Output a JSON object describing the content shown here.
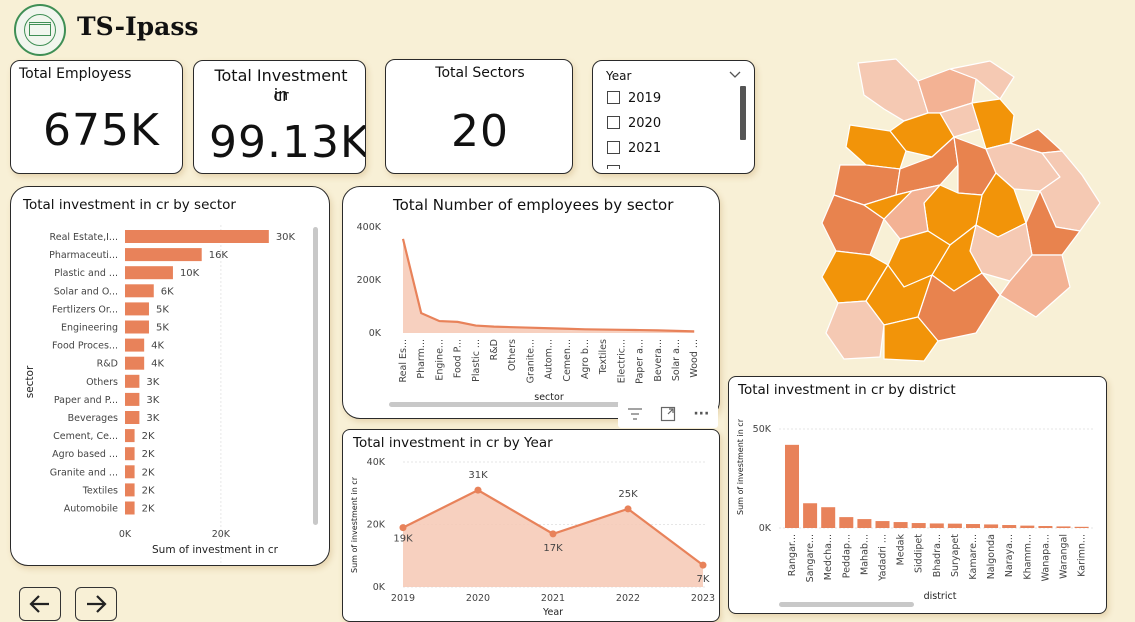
{
  "header": {
    "title": "TS-Ipass"
  },
  "kpis": {
    "employees": {
      "label": "Total Employess",
      "value": "675K"
    },
    "investment": {
      "label_line1": "Total Investment in",
      "label_line2": "cr",
      "value": "99.13K"
    },
    "sectors": {
      "label": "Total Sectors",
      "value": "20"
    }
  },
  "year_slicer": {
    "title": "Year",
    "options": [
      "2019",
      "2020",
      "2021"
    ]
  },
  "map": {
    "colors": {
      "strong": "#f29409",
      "medium": "#e8834e",
      "light": "#f3b294",
      "pale": "#f5c9b3",
      "border": "#ffffff"
    }
  },
  "sector_chart": {
    "chart_data": {
      "type": "bar",
      "title": "Total investment in cr by sector",
      "xlabel": "Sum of investment in cr",
      "ylabel": "sector",
      "categories": [
        "Real Estate,I...",
        "Pharmaceuti...",
        "Plastic and ...",
        "Solar and O...",
        "Fertlizers Or...",
        "Engineering",
        "Food Proces...",
        "R&D",
        "Others",
        "Paper and P...",
        "Beverages",
        "Cement, Ce...",
        "Agro based ...",
        "Granite and ...",
        "Textiles",
        "Automobile"
      ],
      "values": [
        30000,
        16000,
        10000,
        6000,
        5000,
        5000,
        4000,
        4000,
        3000,
        3000,
        3000,
        2000,
        2000,
        2000,
        2000,
        2000
      ],
      "data_labels": [
        "30K",
        "16K",
        "10K",
        "6K",
        "5K",
        "5K",
        "4K",
        "4K",
        "3K",
        "3K",
        "3K",
        "2K",
        "2K",
        "2K",
        "2K",
        "2K"
      ],
      "xticks": [
        "0K",
        "20K"
      ],
      "xlim": [
        0,
        34000
      ],
      "color": "#e8825a"
    }
  },
  "employees_chart": {
    "chart_data": {
      "type": "area",
      "title": "Total Number of employees by sector",
      "xlabel": "sector",
      "categories": [
        "Real Es...",
        "Pharm...",
        "Engine...",
        "Food P...",
        "Plastic ...",
        "R&D",
        "Others",
        "Granite...",
        "Autom...",
        "Cemen...",
        "Agro b...",
        "Textiles",
        "Electric...",
        "Paper a...",
        "Bevera...",
        "Solar a...",
        "Wood ..."
      ],
      "values": [
        355000,
        75000,
        45000,
        42000,
        28000,
        24000,
        22000,
        20000,
        18000,
        16000,
        14000,
        13000,
        12000,
        11000,
        10000,
        8000,
        6000
      ],
      "yticks": [
        "0K",
        "200K",
        "400K"
      ],
      "ylim": [
        0,
        400000
      ],
      "color": "#e8825a",
      "fill": "#f6c8b4"
    }
  },
  "year_chart": {
    "chart_data": {
      "type": "area",
      "title": "Total investment in cr by Year",
      "xlabel": "Year",
      "ylabel": "Sum of investment in cr",
      "categories": [
        "2019",
        "2020",
        "2021",
        "2022",
        "2023"
      ],
      "values": [
        19000,
        31000,
        17000,
        25000,
        7000
      ],
      "data_labels": [
        "19K",
        "31K",
        "17K",
        "25K",
        "7K"
      ],
      "yticks": [
        "0K",
        "20K",
        "40K"
      ],
      "ylim": [
        0,
        40000
      ],
      "color": "#e8825a",
      "fill": "#f6c8b4"
    }
  },
  "district_chart": {
    "chart_data": {
      "type": "bar",
      "title": "Total investment in cr by district",
      "xlabel": "district",
      "ylabel": "Sum of investment in cr",
      "categories": [
        "Rangar...",
        "Sangare...",
        "Medcha...",
        "Peddap...",
        "Mahab...",
        "Yadadri ...",
        "Medak",
        "Siddipet",
        "Bhadra...",
        "Suryapet",
        "Kamare...",
        "Nalgonda",
        "Naraya...",
        "Khamm...",
        "Wanapa...",
        "Warangal",
        "Karimn..."
      ],
      "values": [
        42000,
        12500,
        10500,
        5500,
        4500,
        3500,
        3000,
        2500,
        2300,
        2200,
        2000,
        1800,
        1500,
        1200,
        1000,
        800,
        600
      ],
      "yticks": [
        "0K",
        "50K"
      ],
      "ylim": [
        0,
        50000
      ],
      "color": "#e8825a"
    }
  },
  "toolbar": {
    "filter_icon": "filter-icon",
    "focus_icon": "focus-mode-icon",
    "more_icon": "more-options-icon",
    "more_label": "···"
  },
  "navigation": {
    "back_icon": "arrow-left-icon",
    "forward_icon": "arrow-right-icon"
  }
}
